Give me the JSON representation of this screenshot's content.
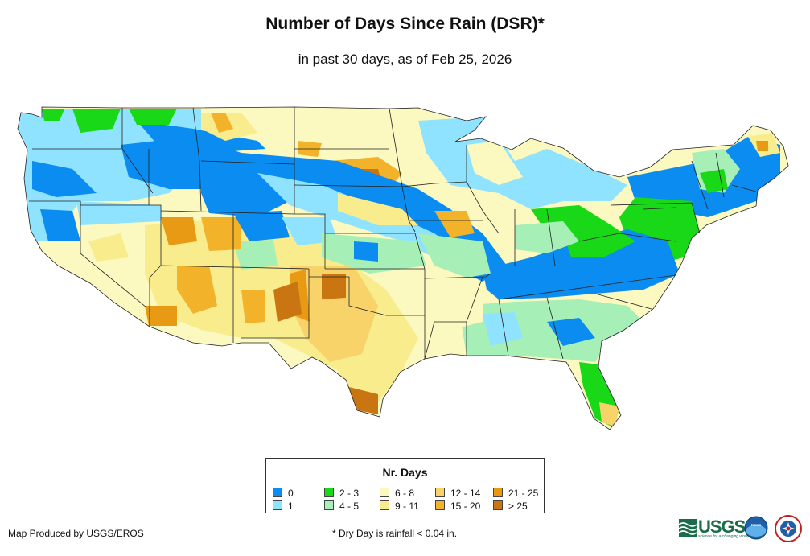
{
  "title": "Number of Days Since Rain (DSR)*",
  "subtitle": "in past 30 days, as of Feb 25, 2026",
  "legend": {
    "title": "Nr. Days",
    "items": [
      {
        "label": "0",
        "color": "#0a8cf0"
      },
      {
        "label": "1",
        "color": "#8fe3ff"
      },
      {
        "label": "2 - 3",
        "color": "#18d818"
      },
      {
        "label": "4 - 5",
        "color": "#a6f0b8"
      },
      {
        "label": "6 - 8",
        "color": "#fbf8c0"
      },
      {
        "label": "9 - 11",
        "color": "#f8ec8c"
      },
      {
        "label": "12 - 14",
        "color": "#f8d36a"
      },
      {
        "label": "15 - 20",
        "color": "#f2b22a"
      },
      {
        "label": "21 - 25",
        "color": "#e89a14"
      },
      {
        "label": "> 25",
        "color": "#c97512"
      }
    ]
  },
  "footer": {
    "producer": "Map Produced by USGS/EROS",
    "note": "* Dry Day is rainfall < 0.04 in."
  },
  "logos": {
    "usgs": {
      "text": "USGS",
      "tagline": "science for a changing world"
    },
    "noaa": {
      "text": "noaa"
    },
    "nws": {
      "text": "NATIONAL WEATHER SERVICE"
    }
  }
}
